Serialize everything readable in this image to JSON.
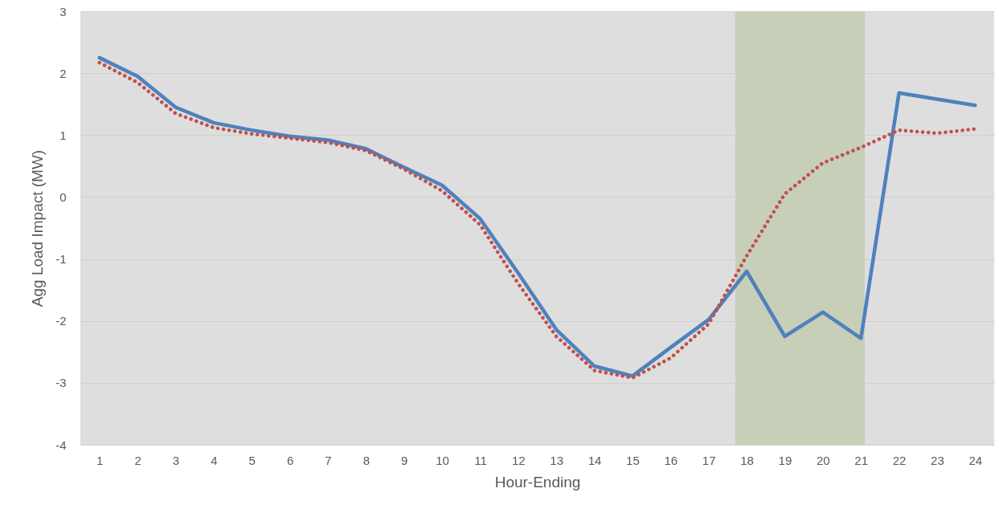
{
  "chart_data": {
    "type": "line",
    "xlabel": "Hour-Ending",
    "ylabel": "Agg Load Impact (MW)",
    "x": [
      1,
      2,
      3,
      4,
      5,
      6,
      7,
      8,
      9,
      10,
      11,
      12,
      13,
      14,
      15,
      16,
      17,
      18,
      19,
      20,
      21,
      22,
      23,
      24
    ],
    "xlim": [
      0.5,
      24.5
    ],
    "xticks": [
      1,
      2,
      3,
      4,
      5,
      6,
      7,
      8,
      9,
      10,
      11,
      12,
      13,
      14,
      15,
      16,
      17,
      18,
      19,
      20,
      21,
      22,
      23,
      24
    ],
    "ylim": [
      -4,
      3
    ],
    "yticks": [
      -4,
      -3,
      -2,
      -1,
      0,
      1,
      2,
      3
    ],
    "grid": "y",
    "series": [
      {
        "color": "#4f81bd",
        "line_style": "solid",
        "values": [
          2.25,
          1.95,
          1.45,
          1.2,
          1.08,
          0.98,
          0.92,
          0.78,
          0.48,
          0.19,
          -0.35,
          -1.23,
          -2.14,
          -2.73,
          -2.89,
          -2.43,
          -1.98,
          -1.2,
          -2.25,
          -1.86,
          -2.28,
          1.68,
          1.58,
          1.48
        ]
      },
      {
        "color": "#c0504d",
        "line_style": "dotted",
        "values": [
          2.17,
          1.85,
          1.35,
          1.12,
          1.02,
          0.95,
          0.88,
          0.75,
          0.45,
          0.1,
          -0.45,
          -1.4,
          -2.25,
          -2.8,
          -2.92,
          -2.6,
          -2.05,
          -0.95,
          0.05,
          0.55,
          0.8,
          1.08,
          1.03,
          1.1
        ]
      }
    ],
    "bands": [
      {
        "axis": "x",
        "from": 17.7,
        "to": 21.1,
        "color": "#c8cfb9"
      }
    ]
  }
}
